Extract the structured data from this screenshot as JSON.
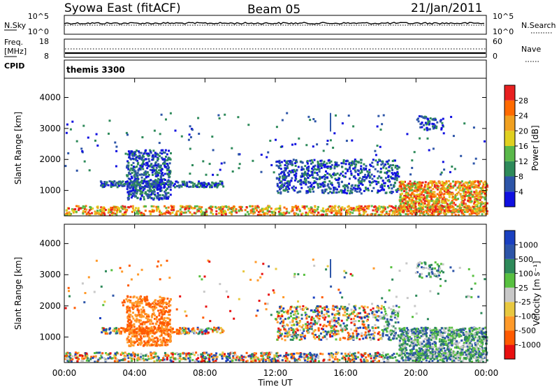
{
  "header": {
    "station": "Syowa East (fitACF)",
    "beam": "Beam 05",
    "date": "21/Jan/2011"
  },
  "top_panels": {
    "nsky_label": "N.Sky",
    "nsearch_label": "N.Search",
    "freq_label_1": "Freq.",
    "freq_label_2": "[MHz]",
    "nave_label": "Nave",
    "cpid_label": "CPID",
    "cpid_value": "themis 3300",
    "noise_ticks": [
      "10^5",
      "10^0"
    ],
    "freq_ticks": [
      "18",
      "8"
    ],
    "nave_ticks": [
      "60",
      "0"
    ]
  },
  "colors": {
    "power": [
      "#1010e0",
      "#2d55a8",
      "#2e8a5a",
      "#5ab84a",
      "#e0d020",
      "#f0a020",
      "#ff6a00",
      "#e82020"
    ],
    "velocity": [
      "#e81010",
      "#ff5a00",
      "#ff9a2a",
      "#e8c840",
      "#c8c8c8",
      "#58c040",
      "#2e8a5a",
      "#2d55a8",
      "#1a40c0"
    ]
  },
  "chart_data": [
    {
      "type": "heatmap",
      "name": "power",
      "xlabel": "",
      "ylabel": "Slant Range [km]",
      "y_ticks": [
        1000,
        2000,
        3000,
        4000
      ],
      "ylim": [
        180,
        4620
      ],
      "xlim_hours": [
        0,
        24
      ],
      "colorbar_label": "Power [dB]",
      "colorbar_ticks": [
        "4",
        "8",
        "12",
        "16",
        "20",
        "24",
        "28"
      ],
      "colorbar_range": [
        0,
        32
      ]
    },
    {
      "type": "heatmap",
      "name": "velocity",
      "xlabel": "Time UT",
      "ylabel": "Slant Range [km]",
      "y_ticks": [
        1000,
        2000,
        3000,
        4000
      ],
      "ylim": [
        180,
        4620
      ],
      "xlim_hours": [
        0,
        24
      ],
      "x_ticks": [
        "00:00",
        "04:00",
        "08:00",
        "12:00",
        "16:00",
        "20:00",
        "00:00"
      ],
      "colorbar_label": "Velocity [m s⁻¹]",
      "colorbar_ticks": [
        "-1000",
        "-500",
        "-100",
        "-25",
        "25",
        "100",
        "500",
        "1000"
      ]
    }
  ]
}
